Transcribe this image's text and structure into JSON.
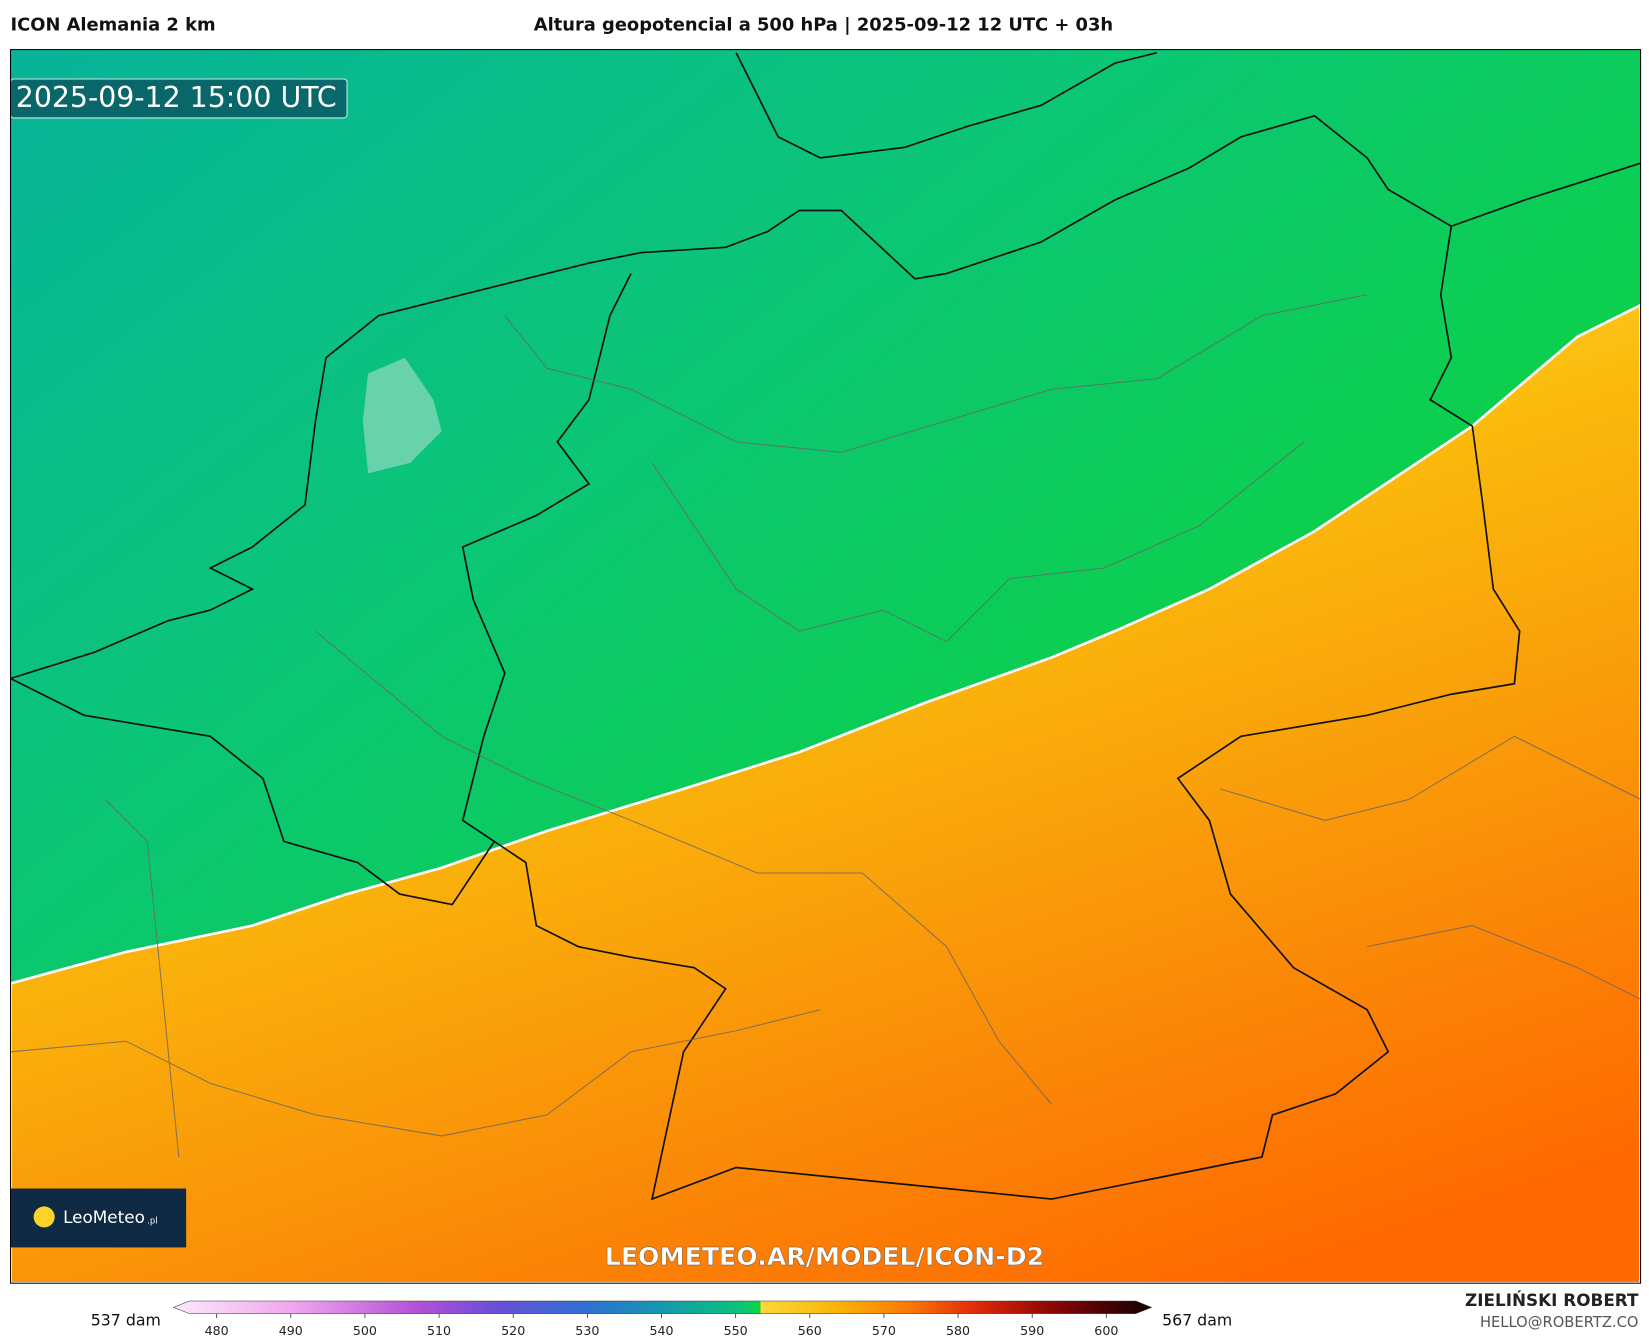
{
  "header": {
    "left": "ICON Alemania 2 km",
    "title": "Altura geopotencial a 500 hPa | 2025-09-12 12 UTC + 03h"
  },
  "map": {
    "timestamp": "2025-09-12 15:00 UTC",
    "logo": "LeoMeteo",
    "logo_suffix": ".pl",
    "watermark": "LEOMETEO.AR/MODEL/ICON-D2"
  },
  "colorbar": {
    "min_label": "537 dam",
    "max_label": "567 dam",
    "ticks": [
      480,
      490,
      500,
      510,
      520,
      530,
      540,
      550,
      560,
      570,
      580,
      590,
      600
    ]
  },
  "footer": {
    "author": "ZIELIŃSKI ROBERT",
    "email": "HELLO@ROBERTZ.CO"
  }
}
